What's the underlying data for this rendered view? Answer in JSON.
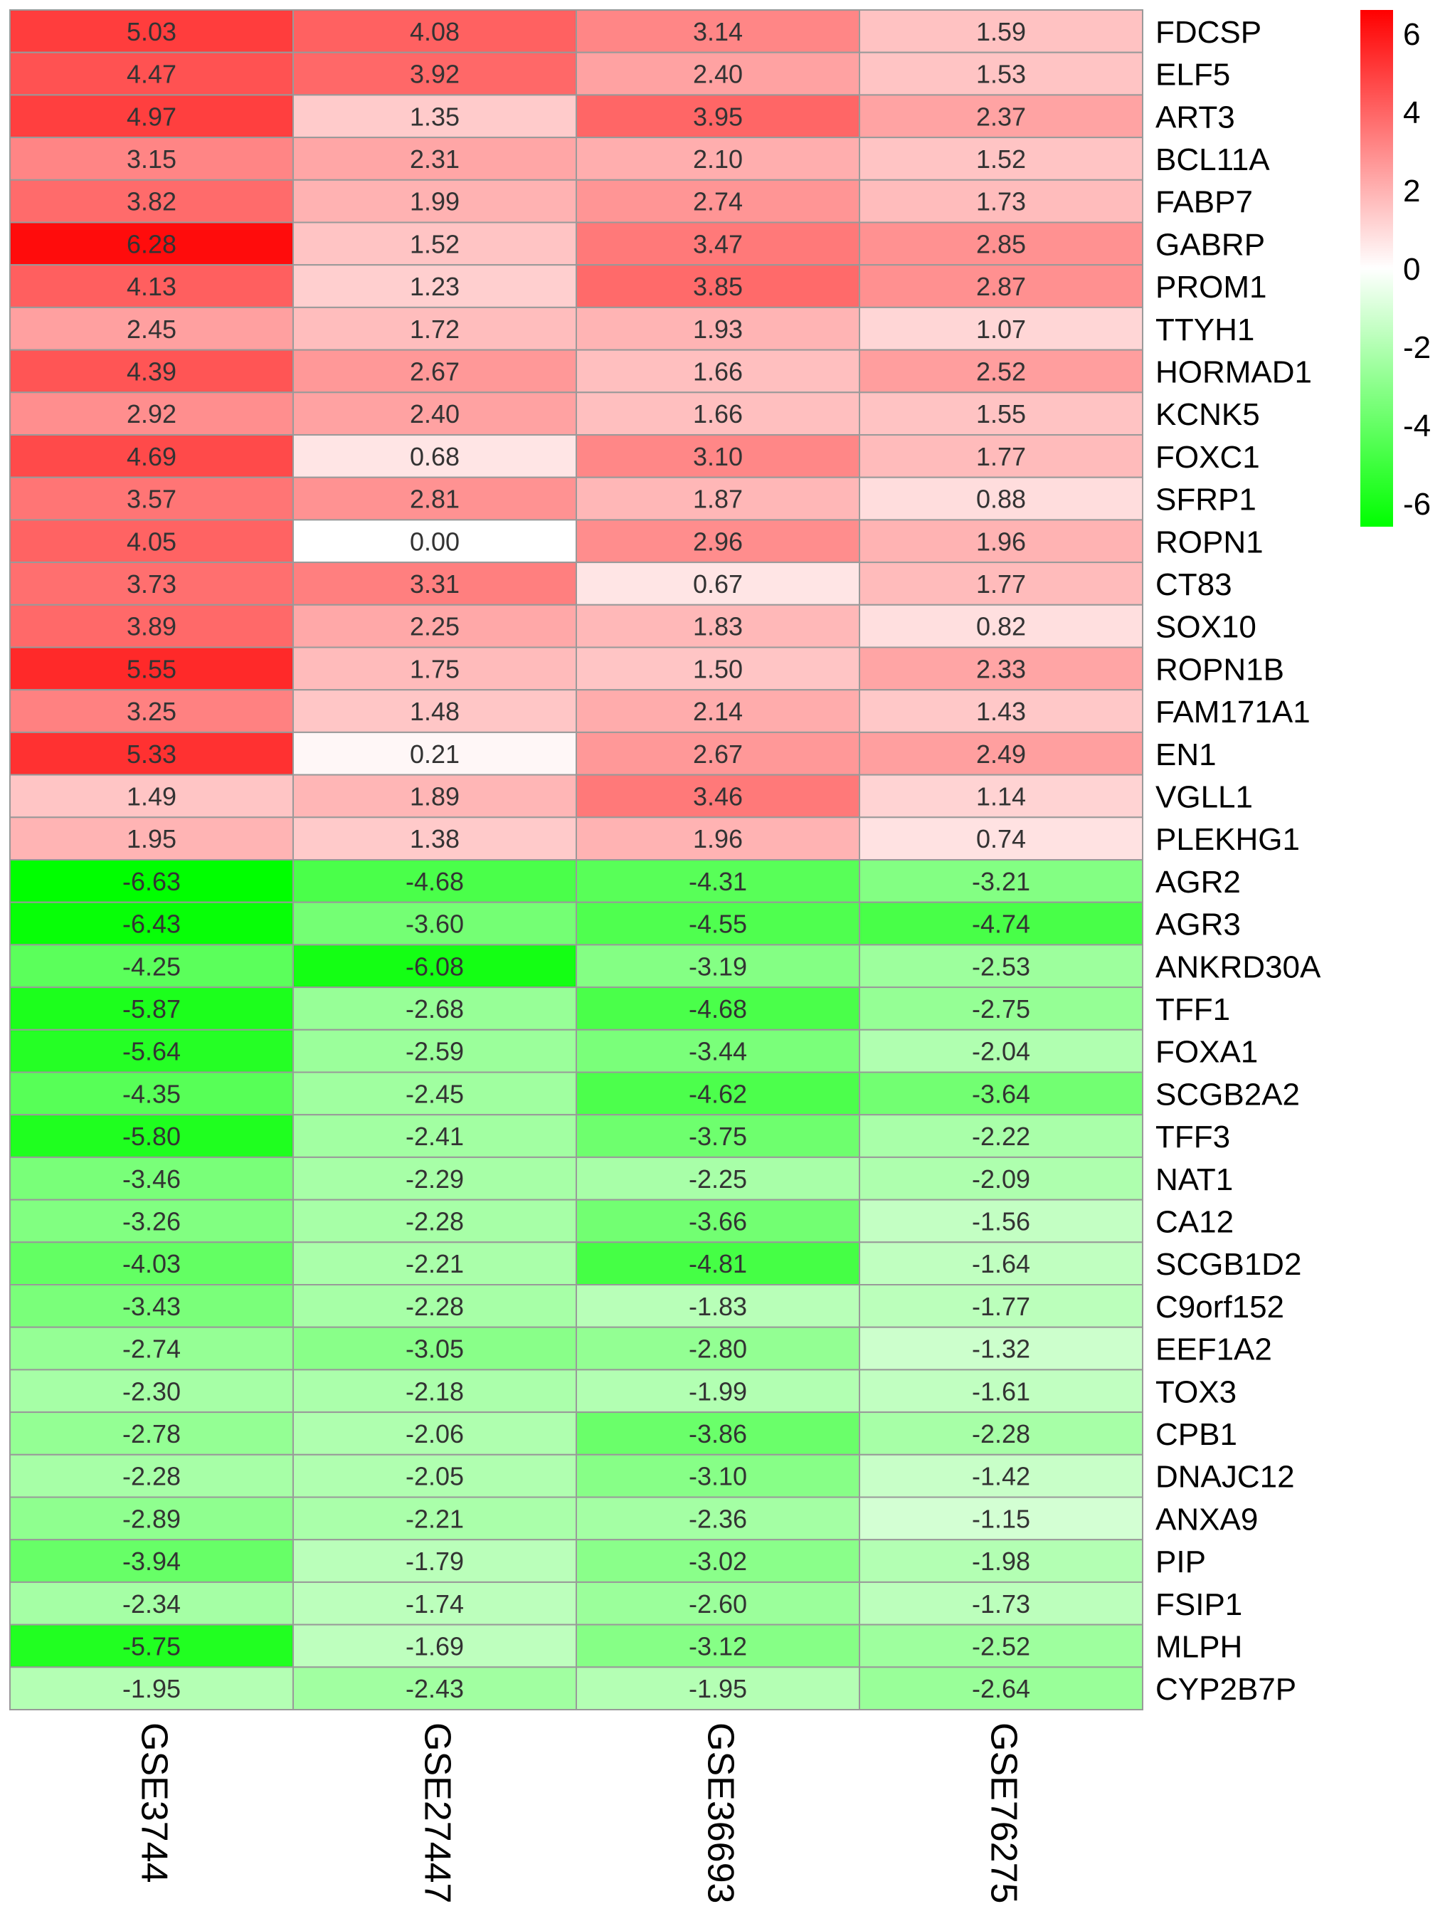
{
  "chart_data": {
    "type": "heatmap",
    "columns": [
      "GSE3744",
      "GSE27447",
      "GSE36693",
      "GSE76275"
    ],
    "rows": [
      {
        "gene": "FDCSP",
        "values": [
          "5.03",
          "4.08",
          "3.14",
          "1.59"
        ]
      },
      {
        "gene": "ELF5",
        "values": [
          "4.47",
          "3.92",
          "2.40",
          "1.53"
        ]
      },
      {
        "gene": "ART3",
        "values": [
          "4.97",
          "1.35",
          "3.95",
          "2.37"
        ]
      },
      {
        "gene": "BCL11A",
        "values": [
          "3.15",
          "2.31",
          "2.10",
          "1.52"
        ]
      },
      {
        "gene": "FABP7",
        "values": [
          "3.82",
          "1.99",
          "2.74",
          "1.73"
        ]
      },
      {
        "gene": "GABRP",
        "values": [
          "6.28",
          "1.52",
          "3.47",
          "2.85"
        ]
      },
      {
        "gene": "PROM1",
        "values": [
          "4.13",
          "1.23",
          "3.85",
          "2.87"
        ]
      },
      {
        "gene": "TTYH1",
        "values": [
          "2.45",
          "1.72",
          "1.93",
          "1.07"
        ]
      },
      {
        "gene": "HORMAD1",
        "values": [
          "4.39",
          "2.67",
          "1.66",
          "2.52"
        ]
      },
      {
        "gene": "KCNK5",
        "values": [
          "2.92",
          "2.40",
          "1.66",
          "1.55"
        ]
      },
      {
        "gene": "FOXC1",
        "values": [
          "4.69",
          "0.68",
          "3.10",
          "1.77"
        ]
      },
      {
        "gene": "SFRP1",
        "values": [
          "3.57",
          "2.81",
          "1.87",
          "0.88"
        ]
      },
      {
        "gene": "ROPN1",
        "values": [
          "4.05",
          "0.00",
          "2.96",
          "1.96"
        ]
      },
      {
        "gene": "CT83",
        "values": [
          "3.73",
          "3.31",
          "0.67",
          "1.77"
        ]
      },
      {
        "gene": "SOX10",
        "values": [
          "3.89",
          "2.25",
          "1.83",
          "0.82"
        ]
      },
      {
        "gene": "ROPN1B",
        "values": [
          "5.55",
          "1.75",
          "1.50",
          "2.33"
        ]
      },
      {
        "gene": "FAM171A1",
        "values": [
          "3.25",
          "1.48",
          "2.14",
          "1.43"
        ]
      },
      {
        "gene": "EN1",
        "values": [
          "5.33",
          "0.21",
          "2.67",
          "2.49"
        ]
      },
      {
        "gene": "VGLL1",
        "values": [
          "1.49",
          "1.89",
          "3.46",
          "1.14"
        ]
      },
      {
        "gene": "PLEKHG1",
        "values": [
          "1.95",
          "1.38",
          "1.96",
          "0.74"
        ]
      },
      {
        "gene": "AGR2",
        "values": [
          "-6.63",
          "-4.68",
          "-4.31",
          "-3.21"
        ]
      },
      {
        "gene": "AGR3",
        "values": [
          "-6.43",
          "-3.60",
          "-4.55",
          "-4.74"
        ]
      },
      {
        "gene": "ANKRD30A",
        "values": [
          "-4.25",
          "-6.08",
          "-3.19",
          "-2.53"
        ]
      },
      {
        "gene": "TFF1",
        "values": [
          "-5.87",
          "-2.68",
          "-4.68",
          "-2.75"
        ]
      },
      {
        "gene": "FOXA1",
        "values": [
          "-5.64",
          "-2.59",
          "-3.44",
          "-2.04"
        ]
      },
      {
        "gene": "SCGB2A2",
        "values": [
          "-4.35",
          "-2.45",
          "-4.62",
          "-3.64"
        ]
      },
      {
        "gene": "TFF3",
        "values": [
          "-5.80",
          "-2.41",
          "-3.75",
          "-2.22"
        ]
      },
      {
        "gene": "NAT1",
        "values": [
          "-3.46",
          "-2.29",
          "-2.25",
          "-2.09"
        ]
      },
      {
        "gene": "CA12",
        "values": [
          "-3.26",
          "-2.28",
          "-3.66",
          "-1.56"
        ]
      },
      {
        "gene": "SCGB1D2",
        "values": [
          "-4.03",
          "-2.21",
          "-4.81",
          "-1.64"
        ]
      },
      {
        "gene": "C9orf152",
        "values": [
          "-3.43",
          "-2.28",
          "-1.83",
          "-1.77"
        ]
      },
      {
        "gene": "EEF1A2",
        "values": [
          "-2.74",
          "-3.05",
          "-2.80",
          "-1.32"
        ]
      },
      {
        "gene": "TOX3",
        "values": [
          "-2.30",
          "-2.18",
          "-1.99",
          "-1.61"
        ]
      },
      {
        "gene": "CPB1",
        "values": [
          "-2.78",
          "-2.06",
          "-3.86",
          "-2.28"
        ]
      },
      {
        "gene": "DNAJC12",
        "values": [
          "-2.28",
          "-2.05",
          "-3.10",
          "-1.42"
        ]
      },
      {
        "gene": "ANXA9",
        "values": [
          "-2.89",
          "-2.21",
          "-2.36",
          "-1.15"
        ]
      },
      {
        "gene": "PIP",
        "values": [
          "-3.94",
          "-1.79",
          "-3.02",
          "-1.98"
        ]
      },
      {
        "gene": "FSIP1",
        "values": [
          "-2.34",
          "-1.74",
          "-2.60",
          "-1.73"
        ]
      },
      {
        "gene": "MLPH",
        "values": [
          "-5.75",
          "-1.69",
          "-3.12",
          "-2.52"
        ]
      },
      {
        "gene": "CYP2B7P",
        "values": [
          "-1.95",
          "-2.43",
          "-1.95",
          "-2.64"
        ]
      }
    ],
    "color_scale": {
      "min": -6.63,
      "max": 6.28,
      "high_color": "#ff0000",
      "mid_color": "#ffffff",
      "low_color": "#00ff00",
      "ticks": [
        "6",
        "4",
        "2",
        "0",
        "-2",
        "-4",
        "-6"
      ]
    },
    "grid_color": "#999999"
  }
}
